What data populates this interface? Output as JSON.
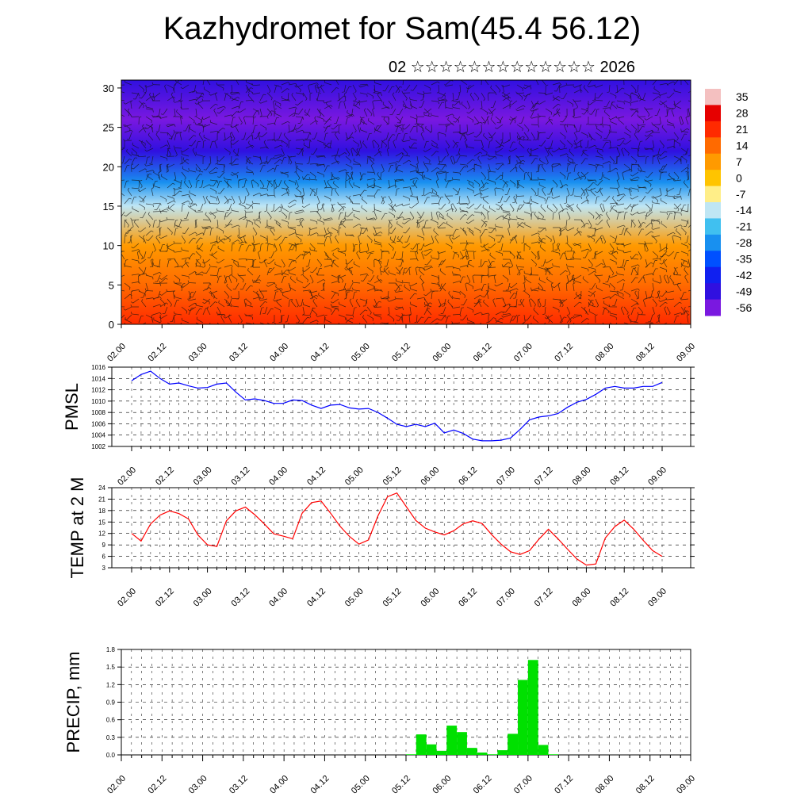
{
  "title": "Kazhydromet for Sam(45.4 56.12)",
  "subtitle": "02 ☆☆☆☆☆☆☆☆☆☆☆☆☆ 2026",
  "time_labels": [
    "02.00",
    "02.12",
    "03.00",
    "03.12",
    "04.00",
    "04.12",
    "05.00",
    "05.12",
    "06.00",
    "06.12",
    "07.00",
    "07.12",
    "08.00",
    "08.12",
    "09.00"
  ],
  "colorbar": {
    "labels": [
      "35",
      "28",
      "21",
      "14",
      "7",
      "0",
      "-7",
      "-14",
      "-21",
      "-28",
      "-35",
      "-42",
      "-49",
      "-56"
    ],
    "colors": [
      "#f4c0c0",
      "#e60000",
      "#ff2a00",
      "#ff6a00",
      "#ff9a00",
      "#ffc400",
      "#ffee88",
      "#bfe6f4",
      "#40c0f0",
      "#1890f0",
      "#0050ff",
      "#1020f0",
      "#3010e0",
      "#7a18e0"
    ]
  },
  "chart_data": [
    {
      "type": "heatmap",
      "title": "Kazhydromet for Sam(45.4 56.12)",
      "ylabel": "",
      "ylim": [
        0,
        31
      ],
      "yticks": [
        0,
        5,
        10,
        15,
        20,
        25,
        30
      ],
      "xticks": [
        "02.00",
        "02.12",
        "03.00",
        "03.12",
        "04.00",
        "04.12",
        "05.00",
        "05.12",
        "06.00",
        "06.12",
        "07.00",
        "07.12",
        "08.00",
        "08.12",
        "09.00"
      ],
      "z_range": [
        -56,
        35
      ],
      "description_levels": [
        {
          "level": 0,
          "value": 21
        },
        {
          "level": 5,
          "value": 16
        },
        {
          "level": 10,
          "value": 10
        },
        {
          "level": 15,
          "value": -12
        },
        {
          "level": 18,
          "value": -28
        },
        {
          "level": 22,
          "value": -48
        },
        {
          "level": 26,
          "value": -56
        },
        {
          "level": 31,
          "value": -52
        }
      ]
    },
    {
      "type": "line",
      "ylabel": "PMSL",
      "ylim": [
        1002,
        1016
      ],
      "yticks": [
        1002,
        1004,
        1006,
        1008,
        1010,
        1012,
        1014,
        1016
      ],
      "x": [
        "02.00",
        "02.03",
        "02.06",
        "02.09",
        "02.12",
        "02.15",
        "02.18",
        "02.21",
        "03.00",
        "03.03",
        "03.06",
        "03.09",
        "03.12",
        "03.15",
        "03.18",
        "03.21",
        "04.00",
        "04.03",
        "04.06",
        "04.09",
        "04.12",
        "04.15",
        "04.18",
        "04.21",
        "05.00",
        "05.03",
        "05.06",
        "05.09",
        "05.12",
        "05.15",
        "05.18",
        "05.21",
        "06.00",
        "06.03",
        "06.06",
        "06.09",
        "06.12",
        "06.15",
        "06.18",
        "06.21",
        "07.00",
        "07.03",
        "07.06",
        "07.09",
        "07.12",
        "07.15",
        "07.18",
        "07.21",
        "08.00",
        "08.03",
        "08.06",
        "08.09",
        "08.12",
        "08.15",
        "08.18",
        "08.21",
        "09.00"
      ],
      "series": [
        {
          "values": [
            1013.6,
            1014.7,
            1015.3,
            1014.0,
            1013.0,
            1013.2,
            1012.7,
            1012.3,
            1012.4,
            1013.0,
            1013.2,
            1011.6,
            1010.2,
            1010.4,
            1010.1,
            1009.6,
            1009.6,
            1010.2,
            1010.1,
            1009.3,
            1008.7,
            1009.3,
            1009.4,
            1008.8,
            1008.6,
            1008.7,
            1008.0,
            1007.0,
            1005.9,
            1005.5,
            1005.9,
            1005.5,
            1006.1,
            1004.4,
            1004.9,
            1004.3,
            1003.3,
            1003.0,
            1003.0,
            1003.1,
            1003.5,
            1005.0,
            1006.7,
            1007.2,
            1007.4,
            1007.8,
            1008.9,
            1009.8,
            1010.3,
            1011.2,
            1012.3,
            1012.6,
            1012.3,
            1012.3,
            1012.6,
            1012.6,
            1013.3
          ],
          "color": "#0000ff"
        }
      ]
    },
    {
      "type": "line",
      "ylabel": "TEMP at 2 M",
      "ylim": [
        3,
        24
      ],
      "yticks": [
        3,
        6,
        9,
        12,
        15,
        18,
        21,
        24
      ],
      "x": [
        "02.00",
        "02.03",
        "02.06",
        "02.09",
        "02.12",
        "02.15",
        "02.18",
        "02.21",
        "03.00",
        "03.03",
        "03.06",
        "03.09",
        "03.12",
        "03.15",
        "03.18",
        "03.21",
        "04.00",
        "04.03",
        "04.06",
        "04.09",
        "04.12",
        "04.15",
        "04.18",
        "04.21",
        "05.00",
        "05.03",
        "05.06",
        "05.09",
        "05.12",
        "05.15",
        "05.18",
        "05.21",
        "06.00",
        "06.03",
        "06.06",
        "06.09",
        "06.12",
        "06.15",
        "06.18",
        "06.21",
        "07.00",
        "07.03",
        "07.06",
        "07.09",
        "07.12",
        "07.15",
        "07.18",
        "07.21",
        "08.00",
        "08.03",
        "08.06",
        "08.09",
        "08.12",
        "08.15",
        "08.18",
        "08.21",
        "09.00"
      ],
      "series": [
        {
          "values": [
            12.0,
            10.0,
            14.5,
            16.8,
            17.9,
            17.2,
            15.8,
            11.6,
            9.0,
            8.6,
            15.3,
            17.9,
            18.9,
            16.9,
            14.5,
            11.9,
            11.3,
            10.6,
            17.3,
            20.1,
            20.5,
            17.3,
            13.9,
            11.2,
            9.2,
            10.3,
            16.6,
            21.6,
            22.6,
            19.0,
            15.4,
            13.4,
            12.4,
            11.6,
            12.7,
            14.5,
            15.3,
            14.6,
            11.7,
            9.2,
            7.2,
            6.5,
            7.5,
            10.5,
            13.1,
            10.6,
            7.9,
            5.3,
            3.7,
            4.0,
            10.8,
            13.8,
            15.5,
            13.1,
            10.2,
            7.5,
            6.0
          ],
          "color": "#ff0000"
        }
      ]
    },
    {
      "type": "bar",
      "ylabel": "PRECIP, mm",
      "ylim": [
        0,
        1.8
      ],
      "yticks": [
        "0.0",
        "0.3",
        "0.6",
        "0.9",
        "1.2",
        "1.5",
        "1.8"
      ],
      "x": [
        "05.15",
        "05.18",
        "05.21",
        "06.00",
        "06.03",
        "06.06",
        "06.09",
        "06.12",
        "06.15",
        "06.18",
        "06.21",
        "07.00",
        "07.03",
        "07.06",
        "07.09"
      ],
      "series": [
        {
          "values": [
            0.01,
            0.35,
            0.18,
            0.07,
            0.5,
            0.39,
            0.12,
            0.04,
            0.01,
            0.08,
            0.36,
            1.28,
            1.62,
            0.17,
            0.01
          ],
          "color": "#00e000"
        }
      ]
    }
  ]
}
